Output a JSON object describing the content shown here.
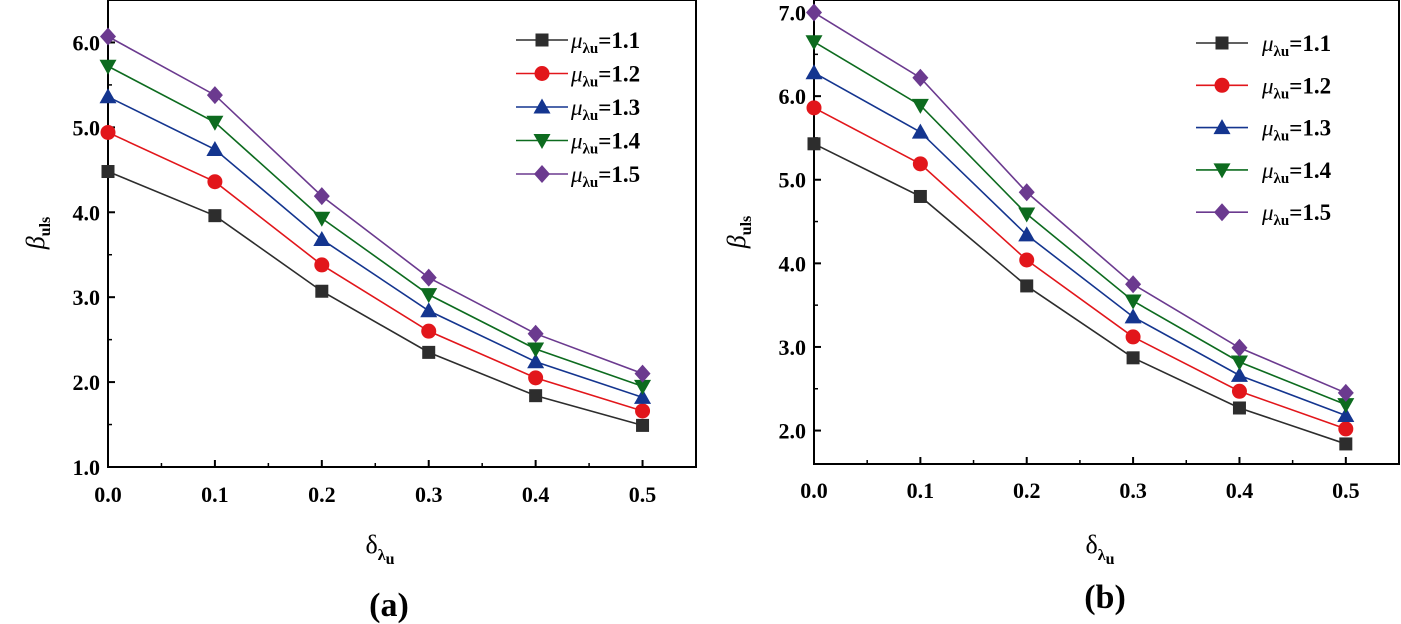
{
  "chart_data": [
    {
      "type": "line",
      "panel_label": "(a)",
      "xlabel": {
        "main": "δ",
        "sub": "λ",
        "subsub": "u"
      },
      "ylabel": {
        "main": "β",
        "sub": "uls"
      },
      "x": [
        0.0,
        0.1,
        0.2,
        0.3,
        0.4,
        0.5
      ],
      "xlim": [
        0.0,
        0.55
      ],
      "ylim": [
        1.0,
        6.5
      ],
      "xticks": [
        "0.0",
        "0.1",
        "0.2",
        "0.3",
        "0.4",
        "0.5"
      ],
      "yticks": [
        "1.0",
        "2.0",
        "3.0",
        "4.0",
        "5.0",
        "6.0"
      ],
      "legend_position": "top-right",
      "series": [
        {
          "name": "μλu=1.1",
          "label_symbol": "μ",
          "label_sub": "λu",
          "label_value": "=1.1",
          "color": "#2d2d2d",
          "marker": "square",
          "values": [
            4.48,
            3.96,
            3.07,
            2.35,
            1.84,
            1.49
          ]
        },
        {
          "name": "μλu=1.2",
          "label_symbol": "μ",
          "label_sub": "λu",
          "label_value": "=1.2",
          "color": "#e2161b",
          "marker": "circle",
          "values": [
            4.94,
            4.36,
            3.38,
            2.6,
            2.05,
            1.66
          ]
        },
        {
          "name": "μλu=1.3",
          "label_symbol": "μ",
          "label_sub": "λu",
          "label_value": "=1.3",
          "color": "#14358f",
          "marker": "triangle-up",
          "values": [
            5.36,
            4.74,
            3.68,
            2.84,
            2.24,
            1.82
          ]
        },
        {
          "name": "μλu=1.4",
          "label_symbol": "μ",
          "label_sub": "λu",
          "label_value": "=1.4",
          "color": "#0d6b1f",
          "marker": "triangle-down",
          "values": [
            5.72,
            5.06,
            3.93,
            3.03,
            2.39,
            1.95
          ]
        },
        {
          "name": "μλu=1.5",
          "label_symbol": "μ",
          "label_sub": "λu",
          "label_value": "=1.5",
          "color": "#6b3a8f",
          "marker": "diamond",
          "values": [
            6.07,
            5.38,
            4.19,
            3.23,
            2.57,
            2.1
          ]
        }
      ]
    },
    {
      "type": "line",
      "panel_label": "(b)",
      "xlabel": {
        "main": "δ",
        "sub": "λ",
        "subsub": "u"
      },
      "ylabel": {
        "main": "β",
        "sub": "uls"
      },
      "x": [
        0.0,
        0.1,
        0.2,
        0.3,
        0.4,
        0.5
      ],
      "xlim": [
        0.0,
        0.55
      ],
      "ylim": [
        1.6,
        7.15
      ],
      "xticks": [
        "0.0",
        "0.1",
        "0.2",
        "0.3",
        "0.4",
        "0.5"
      ],
      "yticks": [
        "2.0",
        "3.0",
        "4.0",
        "5.0",
        "6.0",
        "7.0"
      ],
      "legend_position": "top-right",
      "series": [
        {
          "name": "μλu=1.1",
          "label_symbol": "μ",
          "label_sub": "λu",
          "label_value": "=1.1",
          "color": "#2d2d2d",
          "marker": "square",
          "values": [
            5.43,
            4.8,
            3.73,
            2.87,
            2.27,
            1.84
          ]
        },
        {
          "name": "μλu=1.2",
          "label_symbol": "μ",
          "label_sub": "λu",
          "label_value": "=1.2",
          "color": "#e2161b",
          "marker": "circle",
          "values": [
            5.86,
            5.19,
            4.04,
            3.12,
            2.47,
            2.02
          ]
        },
        {
          "name": "μλu=1.3",
          "label_symbol": "μ",
          "label_sub": "λu",
          "label_value": "=1.3",
          "color": "#14358f",
          "marker": "triangle-up",
          "values": [
            6.28,
            5.57,
            4.34,
            3.36,
            2.66,
            2.18
          ]
        },
        {
          "name": "μλu=1.4",
          "label_symbol": "μ",
          "label_sub": "λu",
          "label_value": "=1.4",
          "color": "#0d6b1f",
          "marker": "triangle-down",
          "values": [
            6.65,
            5.89,
            4.59,
            3.55,
            2.82,
            2.31
          ]
        },
        {
          "name": "μλu=1.5",
          "label_symbol": "μ",
          "label_sub": "λu",
          "label_value": "=1.5",
          "color": "#6b3a8f",
          "marker": "diamond",
          "values": [
            7.0,
            6.22,
            4.85,
            3.75,
            2.99,
            2.45
          ]
        }
      ]
    }
  ]
}
